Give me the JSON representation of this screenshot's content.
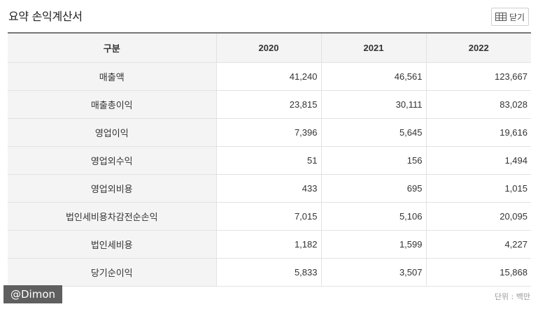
{
  "title": "요약 손익계산서",
  "close_button_label": "닫기",
  "table": {
    "headers": [
      "구분",
      "2020",
      "2021",
      "2022"
    ],
    "rows": [
      {
        "label": "매출액",
        "values": [
          "41,240",
          "46,561",
          "123,667"
        ]
      },
      {
        "label": "매출총이익",
        "values": [
          "23,815",
          "30,111",
          "83,028"
        ]
      },
      {
        "label": "영업이익",
        "values": [
          "7,396",
          "5,645",
          "19,616"
        ]
      },
      {
        "label": "영업외수익",
        "values": [
          "51",
          "156",
          "1,494"
        ]
      },
      {
        "label": "영업외비용",
        "values": [
          "433",
          "695",
          "1,015"
        ]
      },
      {
        "label": "법인세비용차감전순손익",
        "values": [
          "7,015",
          "5,106",
          "20,095"
        ]
      },
      {
        "label": "법인세비용",
        "values": [
          "1,182",
          "1,599",
          "4,227"
        ]
      },
      {
        "label": "당기순이익",
        "values": [
          "5,833",
          "3,507",
          "15,868"
        ]
      }
    ]
  },
  "unit_note": "단위 : 백만",
  "watermark": "@Dimon"
}
